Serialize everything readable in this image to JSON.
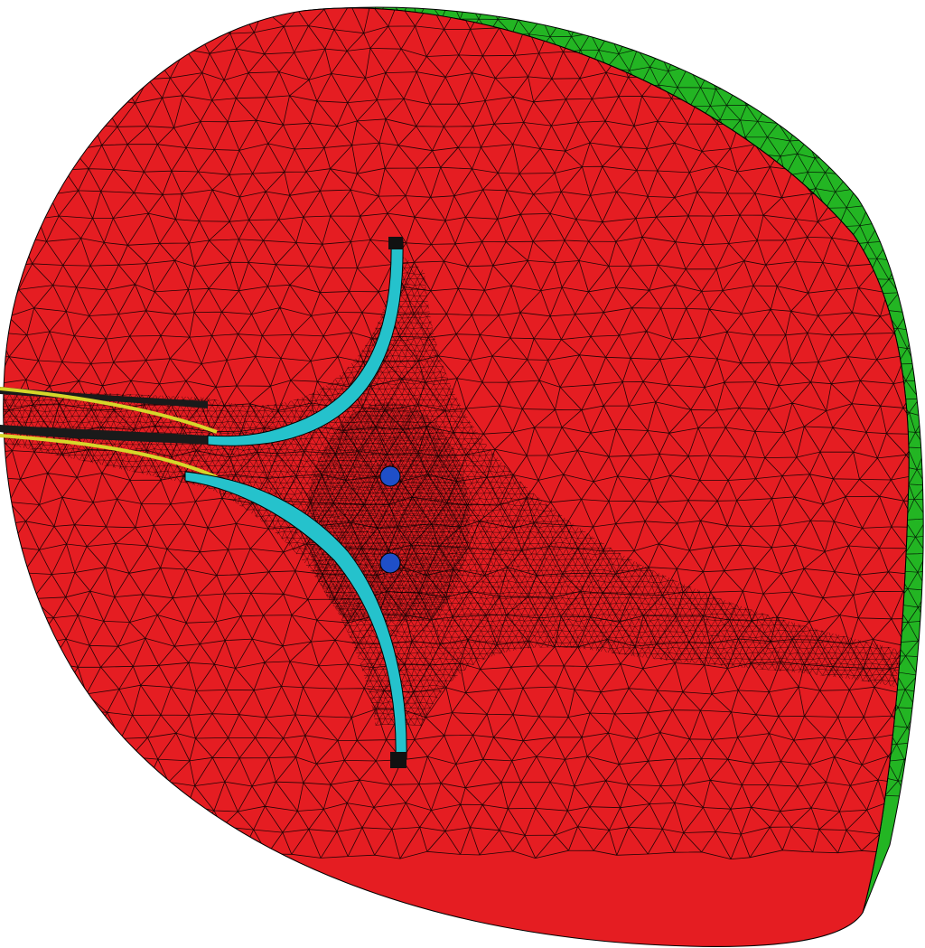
{
  "scene": {
    "title": "",
    "colors": {
      "background": "#ffffff",
      "face": "#e51d22",
      "rim": "#23b523",
      "rim_dark": "#158a15",
      "electrode": "#25c2cc",
      "electrode_dark": "#0e7c86",
      "channel_wall": "#d6d62a",
      "particle": "#1f4fc8",
      "mesh_line": "#000000"
    },
    "regions": [
      {
        "name": "outer-domain-face",
        "color_key": "face"
      },
      {
        "name": "cylinder-side-wall",
        "color_key": "rim"
      },
      {
        "name": "upper-electrode",
        "color_key": "electrode"
      },
      {
        "name": "lower-electrode",
        "color_key": "electrode"
      },
      {
        "name": "inlet-channel",
        "color_key": "channel_wall"
      },
      {
        "name": "particle",
        "color_key": "particle"
      }
    ],
    "particle_count": 2
  }
}
